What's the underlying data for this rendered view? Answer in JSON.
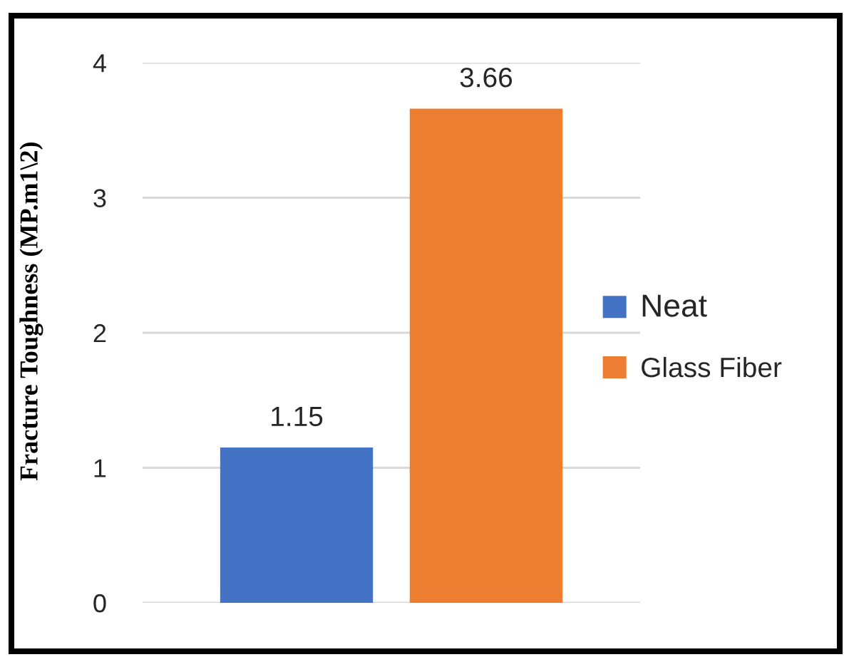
{
  "chart_data": {
    "type": "bar",
    "ylabel": "Fracture Toughness (MP.m1\\2)",
    "categories": [
      null
    ],
    "series": [
      {
        "name": "Neat",
        "color": "#4472c4",
        "values": [
          1.15
        ]
      },
      {
        "name": "Glass Fiber",
        "color": "#ed7d31",
        "values": [
          3.66
        ]
      }
    ],
    "ylim": [
      0,
      4
    ],
    "yticks": [
      0,
      1,
      2,
      3,
      4
    ],
    "grid": "y",
    "legend": "right",
    "data_labels": true,
    "tick_labels": "y"
  }
}
